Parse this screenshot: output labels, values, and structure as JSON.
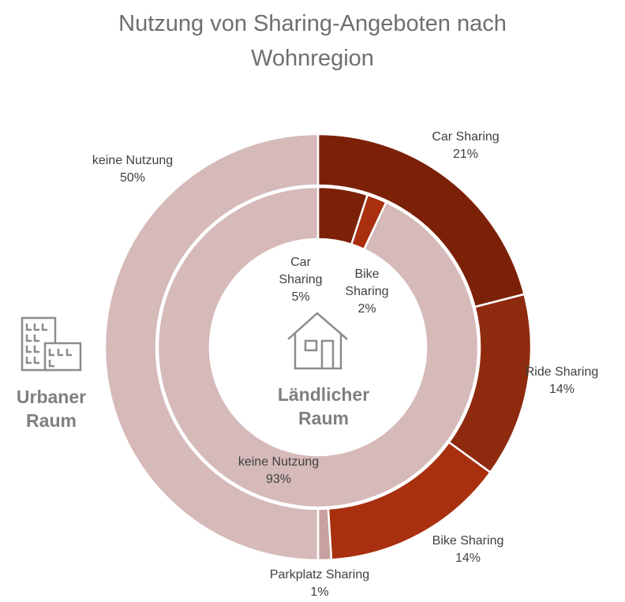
{
  "chart_data": {
    "type": "donut",
    "title": "Nutzung von Sharing-Angeboten nach Wohnregion",
    "series": [
      {
        "name": "Urbaner Raum",
        "categories": [
          "Car Sharing",
          "Ride Sharing",
          "Bike Sharing",
          "Parkplatz Sharing",
          "keine Nutzung"
        ],
        "values": [
          21,
          14,
          14,
          1,
          50
        ],
        "value_labels": [
          "21%",
          "14%",
          "14%",
          "1%",
          "50%"
        ],
        "colors": [
          "#7b2108",
          "#8e2a0e",
          "#a8300f",
          "#c9a0a0",
          "#d6b9b9"
        ]
      },
      {
        "name": "Ländlicher Raum",
        "categories": [
          "Car Sharing",
          "Bike Sharing",
          "keine Nutzung"
        ],
        "values": [
          5,
          2,
          93
        ],
        "value_labels": [
          "5%",
          "2%",
          "93%"
        ],
        "colors": [
          "#7b2108",
          "#a8300f",
          "#d6b9b9"
        ]
      }
    ]
  }
}
